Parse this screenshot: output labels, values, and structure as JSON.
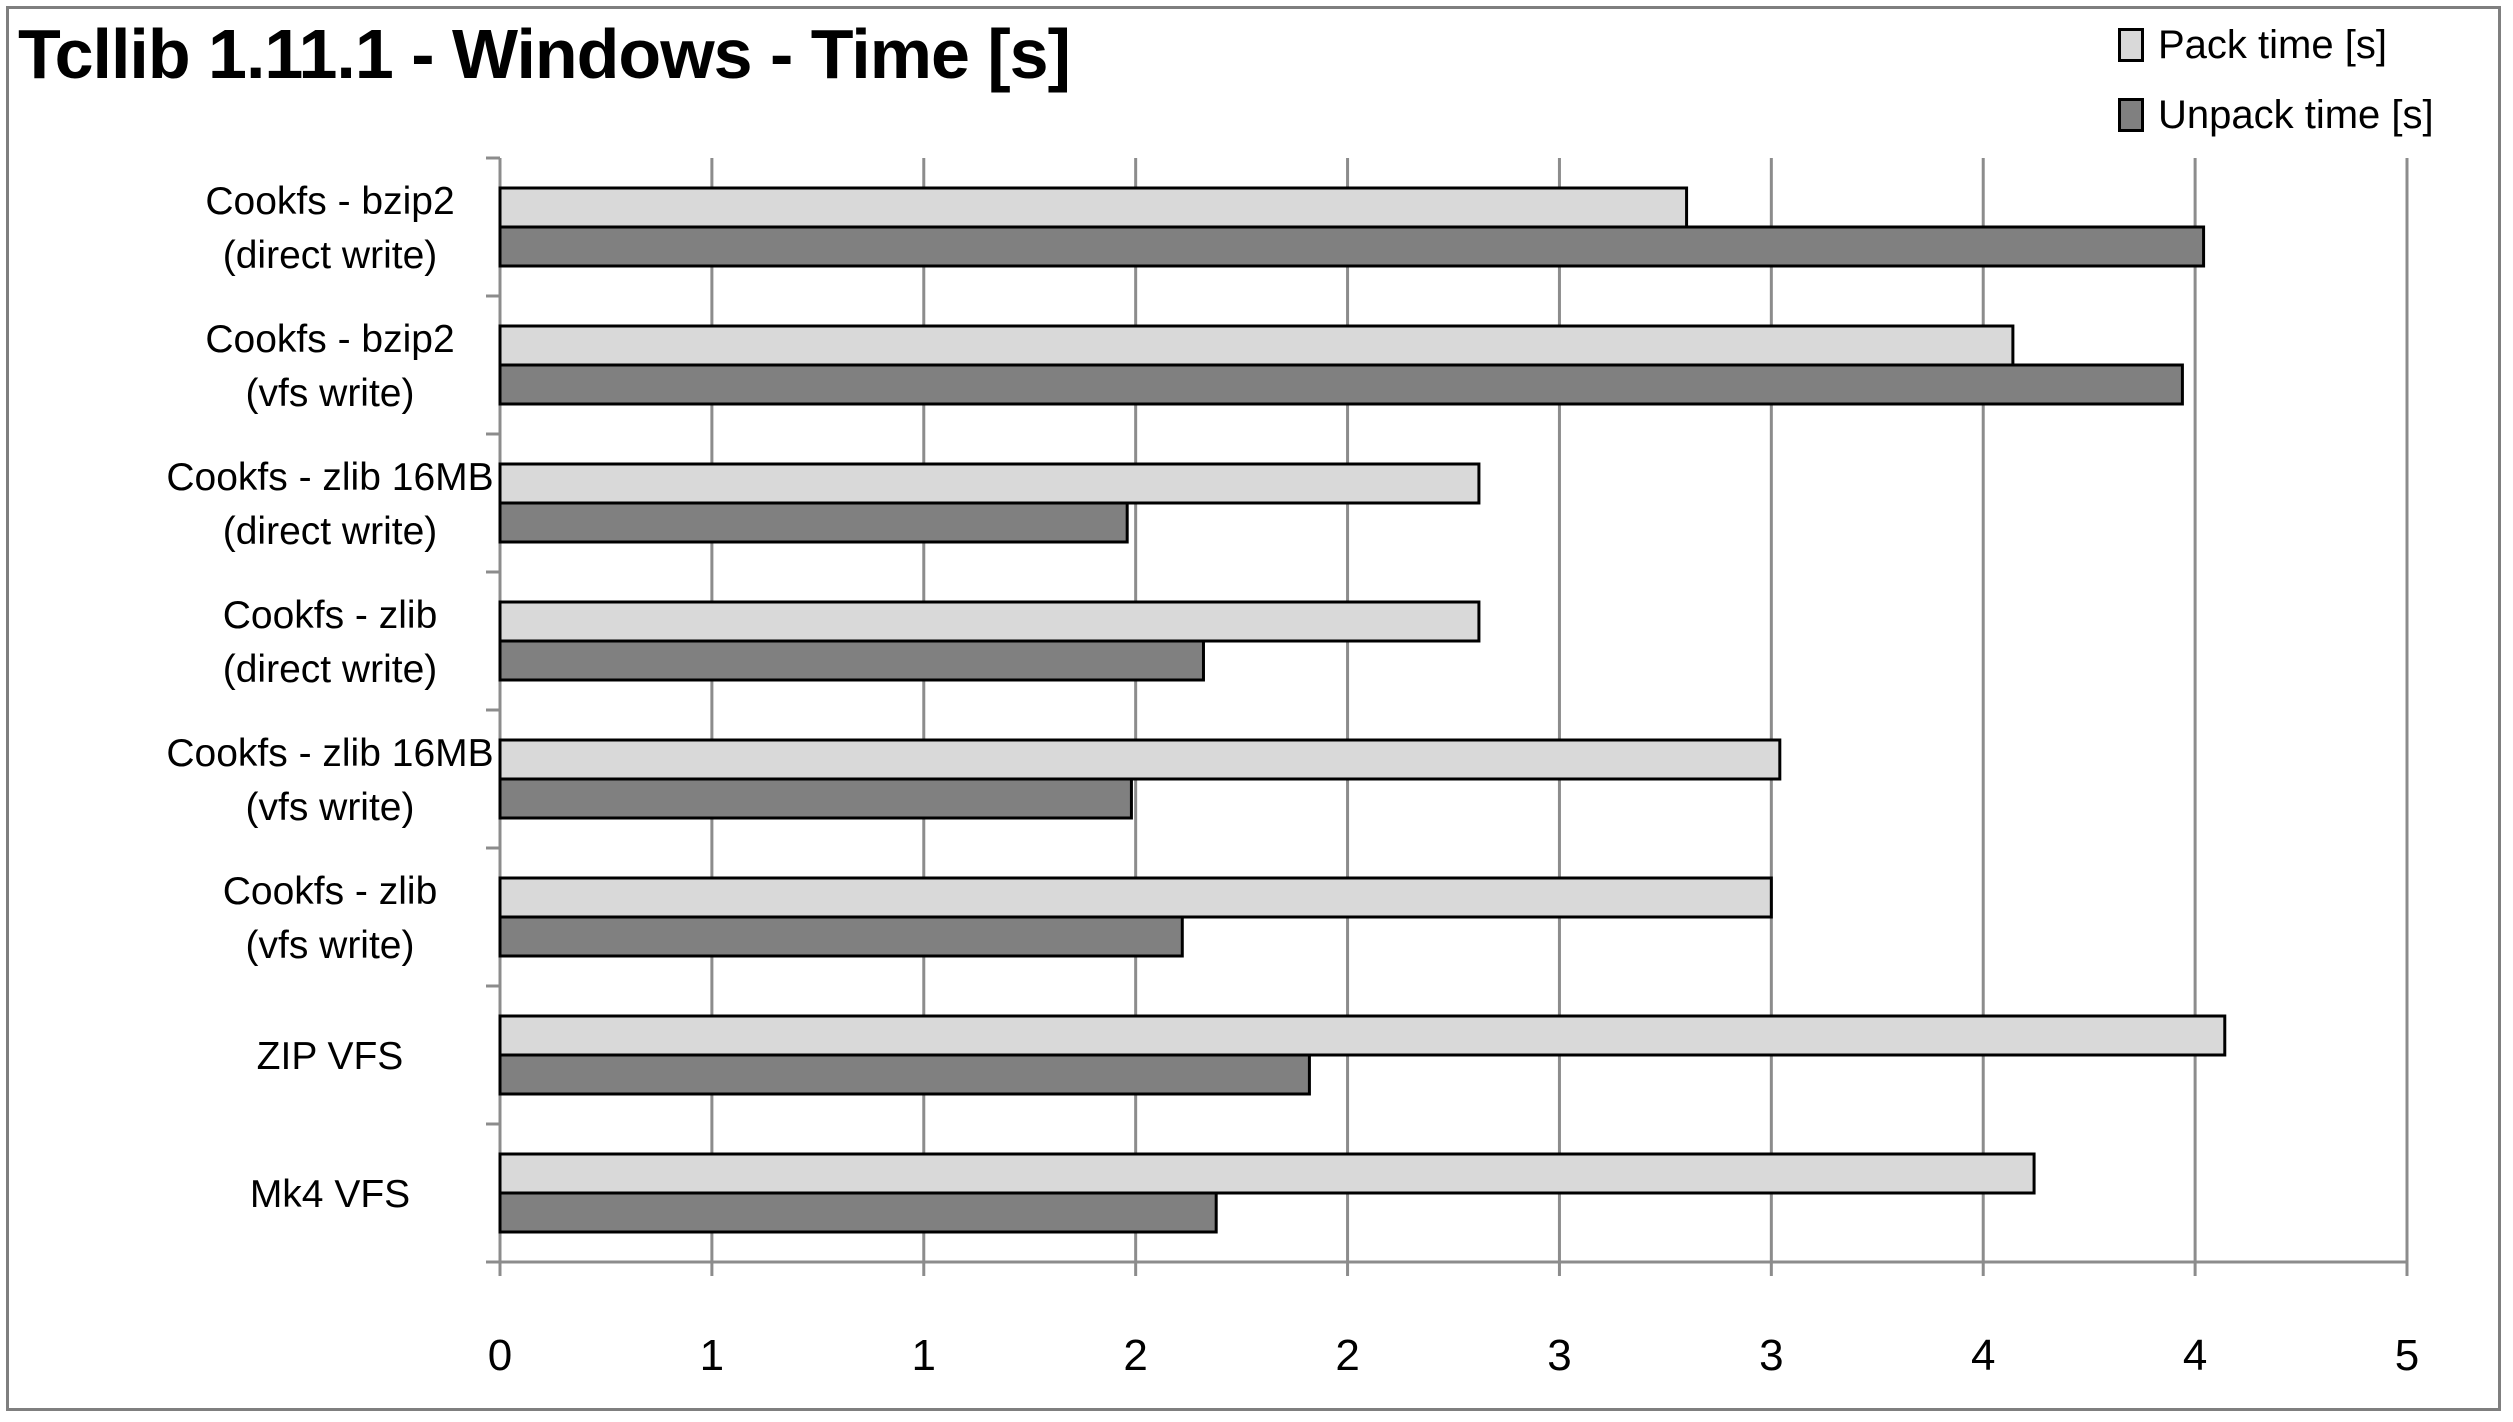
{
  "chart_data": {
    "type": "bar",
    "orientation": "horizontal",
    "title": "Tcllib 1.11.1 - Windows - Time [s]",
    "categories": [
      [
        "Cookfs - bzip2",
        "(direct write)"
      ],
      [
        "Cookfs - bzip2",
        "(vfs write)"
      ],
      [
        "Cookfs - zlib 16MB",
        "(direct write)"
      ],
      [
        "Cookfs - zlib",
        "(direct write)"
      ],
      [
        "Cookfs - zlib 16MB",
        "(vfs write)"
      ],
      [
        "Cookfs - zlib",
        "(vfs write)"
      ],
      [
        "ZIP VFS"
      ],
      [
        "Mk4 VFS"
      ]
    ],
    "series": [
      {
        "name": "Pack time [s]",
        "color": "#d9d9d9",
        "values": [
          2.8,
          3.57,
          2.31,
          2.31,
          3.02,
          3.0,
          4.07,
          3.62
        ]
      },
      {
        "name": "Unpack time [s]",
        "color": "#808080",
        "values": [
          4.02,
          3.97,
          1.48,
          1.66,
          1.49,
          1.61,
          1.91,
          1.69
        ]
      }
    ],
    "x_tick_labels": [
      "0",
      "1",
      "1",
      "2",
      "2",
      "3",
      "3",
      "4",
      "4",
      "5"
    ],
    "xlim": [
      0,
      4.5
    ],
    "grid": true,
    "legend_position": "top-right"
  }
}
